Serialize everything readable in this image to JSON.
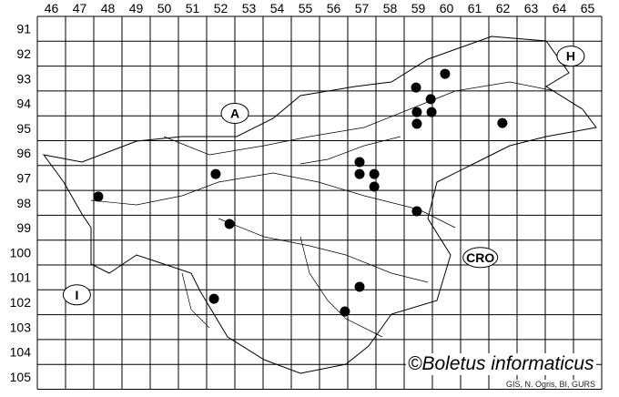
{
  "grid": {
    "columns": [
      "46",
      "47",
      "48",
      "49",
      "50",
      "51",
      "52",
      "53",
      "54",
      "55",
      "56",
      "57",
      "58",
      "59",
      "60",
      "61",
      "62",
      "63",
      "64",
      "65"
    ],
    "rows": [
      "91",
      "92",
      "93",
      "94",
      "95",
      "96",
      "97",
      "98",
      "99",
      "100",
      "101",
      "102",
      "103",
      "104",
      "105"
    ]
  },
  "country_labels": [
    {
      "text": "A",
      "col": 53.0,
      "row": 94.9
    },
    {
      "text": "H",
      "col": 64.9,
      "row": 92.6
    },
    {
      "text": "CRO",
      "col": 61.7,
      "row": 100.7
    },
    {
      "text": "I",
      "col": 47.4,
      "row": 102.2
    }
  ],
  "records": [
    {
      "col": 60.45,
      "row": 93.31
    },
    {
      "col": 59.42,
      "row": 93.86
    },
    {
      "col": 59.94,
      "row": 94.33
    },
    {
      "col": 59.45,
      "row": 94.85
    },
    {
      "col": 59.97,
      "row": 94.85
    },
    {
      "col": 59.45,
      "row": 95.32
    },
    {
      "col": 62.48,
      "row": 95.29
    },
    {
      "col": 57.42,
      "row": 96.86
    },
    {
      "col": 57.42,
      "row": 97.34
    },
    {
      "col": 57.94,
      "row": 97.34
    },
    {
      "col": 57.94,
      "row": 97.85
    },
    {
      "col": 52.32,
      "row": 97.34
    },
    {
      "col": 48.16,
      "row": 98.25
    },
    {
      "col": 52.81,
      "row": 99.35
    },
    {
      "col": 59.45,
      "row": 98.84
    },
    {
      "col": 57.42,
      "row": 101.88
    },
    {
      "col": 52.26,
      "row": 102.36
    },
    {
      "col": 56.9,
      "row": 102.87
    }
  ],
  "copyright": "©Boletus informaticus",
  "source": "GIS, N. Ogris, BI, GURS",
  "colors": {
    "lines": "#000000",
    "dots": "#000000",
    "background": "#ffffff"
  }
}
